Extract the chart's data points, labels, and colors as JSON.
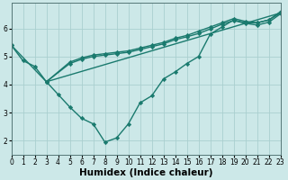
{
  "title": "",
  "xlabel": "Humidex (Indice chaleur)",
  "ylabel": "",
  "bg_color": "#cce8e8",
  "line_color": "#1a7a6e",
  "grid_color": "#aacfcf",
  "lines": [
    {
      "x": [
        0,
        1,
        2,
        3,
        4,
        5,
        6,
        7,
        8,
        9,
        10,
        11,
        12,
        13,
        14,
        15,
        16,
        17,
        18,
        19,
        20,
        21,
        22,
        23
      ],
      "y": [
        5.4,
        4.85,
        4.65,
        4.1,
        3.65,
        3.2,
        2.8,
        2.6,
        1.95,
        2.1,
        2.6,
        3.35,
        3.6,
        4.2,
        4.45,
        4.75,
        5.0,
        5.8,
        6.05,
        6.3,
        6.2,
        6.2,
        6.3,
        6.55
      ]
    },
    {
      "x": [
        0,
        3,
        23
      ],
      "y": [
        5.4,
        4.1,
        6.55
      ]
    },
    {
      "x": [
        3,
        5,
        6,
        7,
        8,
        9,
        10,
        11,
        12,
        13,
        14,
        15,
        16,
        17,
        18,
        19,
        20,
        21,
        22,
        23
      ],
      "y": [
        4.1,
        4.8,
        4.95,
        5.05,
        5.1,
        5.15,
        5.2,
        5.3,
        5.4,
        5.5,
        5.65,
        5.75,
        5.9,
        6.05,
        6.2,
        6.35,
        6.25,
        6.2,
        6.3,
        6.6
      ]
    },
    {
      "x": [
        3,
        5,
        6,
        7,
        8,
        9,
        10,
        11,
        12,
        13,
        14,
        15,
        16,
        17,
        18,
        19,
        20,
        21,
        22,
        23
      ],
      "y": [
        4.1,
        4.75,
        4.9,
        5.0,
        5.05,
        5.1,
        5.15,
        5.25,
        5.35,
        5.45,
        5.6,
        5.7,
        5.82,
        5.98,
        6.15,
        6.28,
        6.18,
        6.12,
        6.22,
        6.52
      ]
    }
  ],
  "xlim": [
    0,
    23
  ],
  "ylim": [
    1.5,
    6.9
  ],
  "yticks": [
    2,
    3,
    4,
    5,
    6
  ],
  "xticks": [
    0,
    1,
    2,
    3,
    4,
    5,
    6,
    7,
    8,
    9,
    10,
    11,
    12,
    13,
    14,
    15,
    16,
    17,
    18,
    19,
    20,
    21,
    22,
    23
  ],
  "xtick_labels": [
    "0",
    "1",
    "2",
    "3",
    "4",
    "5",
    "6",
    "7",
    "8",
    "9",
    "10",
    "11",
    "12",
    "13",
    "14",
    "15",
    "16",
    "17",
    "18",
    "19",
    "20",
    "21",
    "22",
    "23"
  ],
  "tick_fontsize": 5.5,
  "xlabel_fontsize": 7.5,
  "marker": "D",
  "markersize": 2.2,
  "linewidth": 1.0
}
